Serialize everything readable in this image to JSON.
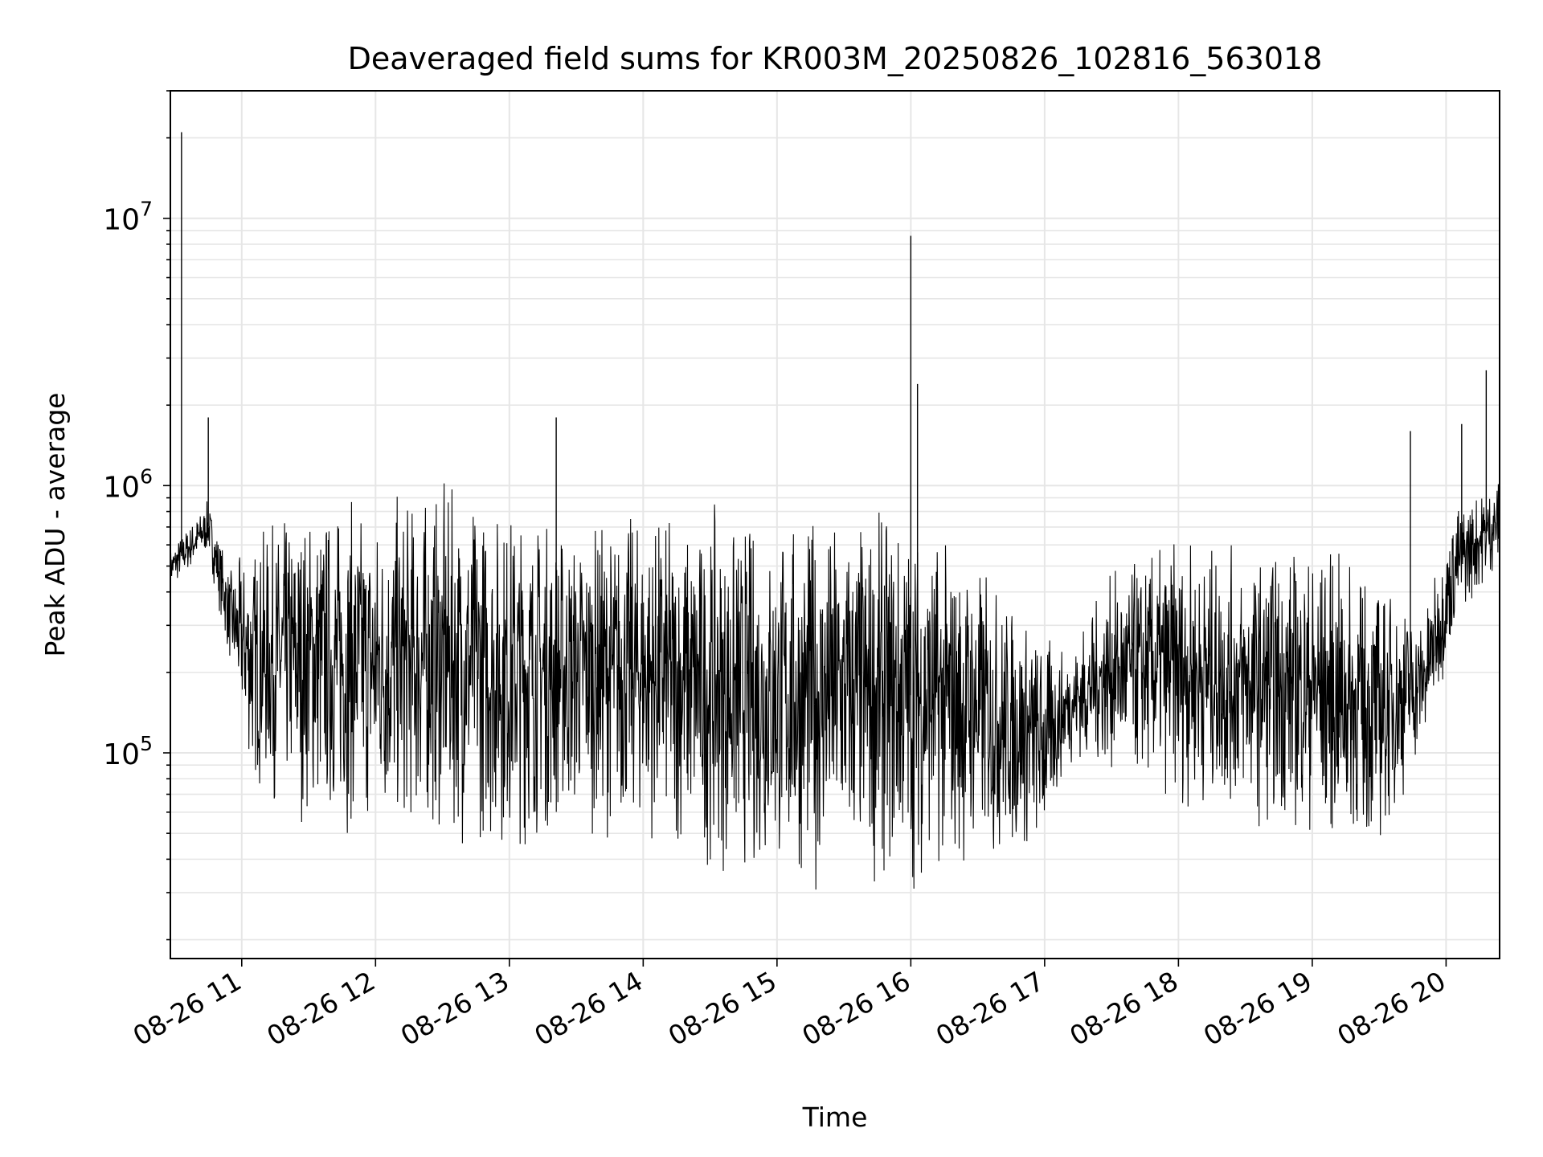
{
  "chart_data": {
    "type": "line",
    "title": "Deaveraged field sums for KR003M_20250826_102816_563018",
    "xlabel": "Time",
    "ylabel": "Peak ADU - average",
    "yscale": "log",
    "ylim": [
      17000,
      30000000
    ],
    "xlim": [
      "2025-08-26 10:28",
      "2025-08-26 20:24"
    ],
    "grid": true,
    "line_color": "#000000",
    "grid_color": "#e6e6e6",
    "x_ticks": [
      "08-26 11",
      "08-26 12",
      "08-26 13",
      "08-26 14",
      "08-26 15",
      "08-26 16",
      "08-26 17",
      "08-26 18",
      "08-26 19",
      "08-26 20"
    ],
    "y_ticks": [
      {
        "base": "10",
        "exp": "5",
        "value": 100000
      },
      {
        "base": "10",
        "exp": "6",
        "value": 1000000
      },
      {
        "base": "10",
        "exp": "7",
        "value": 10000000
      }
    ],
    "series": [
      {
        "spikes": [
          {
            "time": "2025-08-26 10:33",
            "value": 21000000
          },
          {
            "time": "2025-08-26 10:45",
            "value": 1800000
          },
          {
            "time": "2025-08-26 13:21",
            "value": 1800000
          },
          {
            "time": "2025-08-26 16:00",
            "value": 8600000
          },
          {
            "time": "2025-08-26 16:03",
            "value": 2400000
          },
          {
            "time": "2025-08-26 19:44",
            "value": 1600000
          },
          {
            "time": "2025-08-26 20:07",
            "value": 1700000
          },
          {
            "time": "2025-08-26 20:18",
            "value": 2700000
          }
        ],
        "envelope": [
          {
            "time": "2025-08-26 10:28",
            "low": 400000,
            "high": 600000
          },
          {
            "time": "2025-08-26 10:45",
            "low": 550000,
            "high": 900000
          },
          {
            "time": "2025-08-26 10:55",
            "low": 200000,
            "high": 500000
          },
          {
            "time": "2025-08-26 11:05",
            "low": 70000,
            "high": 700000
          },
          {
            "time": "2025-08-26 11:30",
            "low": 50000,
            "high": 1000000
          },
          {
            "time": "2025-08-26 12:00",
            "low": 45000,
            "high": 1000000
          },
          {
            "time": "2025-08-26 12:30",
            "low": 45000,
            "high": 1100000
          },
          {
            "time": "2025-08-26 13:00",
            "low": 40000,
            "high": 1000000
          },
          {
            "time": "2025-08-26 13:30",
            "low": 50000,
            "high": 800000
          },
          {
            "time": "2025-08-26 14:00",
            "low": 45000,
            "high": 900000
          },
          {
            "time": "2025-08-26 14:30",
            "low": 35000,
            "high": 850000
          },
          {
            "time": "2025-08-26 15:00",
            "low": 30000,
            "high": 850000
          },
          {
            "time": "2025-08-26 15:30",
            "low": 30000,
            "high": 900000
          },
          {
            "time": "2025-08-26 16:00",
            "low": 30000,
            "high": 900000
          },
          {
            "time": "2025-08-26 16:30",
            "low": 35000,
            "high": 600000
          },
          {
            "time": "2025-08-26 17:00",
            "low": 40000,
            "high": 300000
          },
          {
            "time": "2025-08-26 17:10",
            "low": 90000,
            "high": 250000
          },
          {
            "time": "2025-08-26 17:30",
            "low": 80000,
            "high": 500000
          },
          {
            "time": "2025-08-26 18:00",
            "low": 60000,
            "high": 700000
          },
          {
            "time": "2025-08-26 18:30",
            "low": 55000,
            "high": 600000
          },
          {
            "time": "2025-08-26 19:00",
            "low": 45000,
            "high": 700000
          },
          {
            "time": "2025-08-26 19:30",
            "low": 40000,
            "high": 500000
          },
          {
            "time": "2025-08-26 19:50",
            "low": 100000,
            "high": 350000
          },
          {
            "time": "2025-08-26 20:05",
            "low": 300000,
            "high": 900000
          },
          {
            "time": "2025-08-26 20:24",
            "low": 500000,
            "high": 1100000
          }
        ]
      }
    ]
  }
}
